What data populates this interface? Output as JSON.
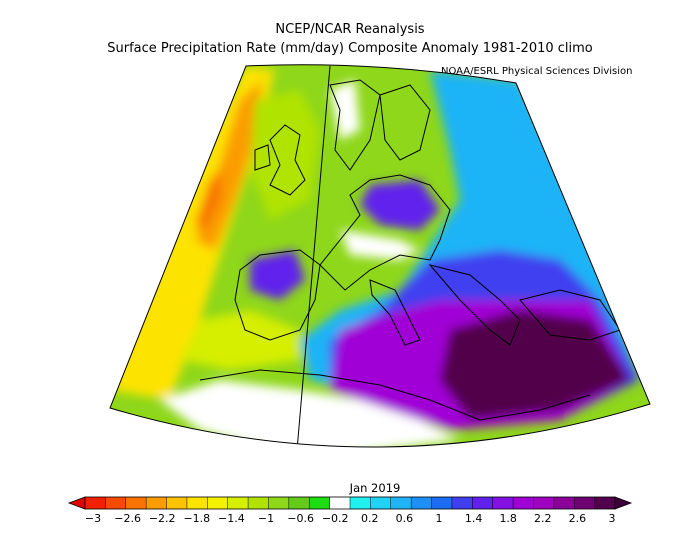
{
  "header": {
    "title": "NCEP/NCAR Reanalysis",
    "subtitle": "Surface Precipitation Rate (mm/day) Composite Anomaly 1981-2010 climo",
    "credit": "NOAA/ESRL Physical Sciences Division"
  },
  "map": {
    "period_label": "Jan 2019",
    "region": "Europe / Mediterranean",
    "projection": "conic",
    "anomaly_areas": [
      {
        "area": "Eastern Mediterranean / Greece / Turkey",
        "level": "strong wet",
        "approx_anomaly": 3
      },
      {
        "area": "Central Mediterranean / Tyrrhenian Sea",
        "level": "wet",
        "approx_anomaly": 2.2
      },
      {
        "area": "Alps / Southern Germany",
        "level": "wet",
        "approx_anomaly": 2.2
      },
      {
        "area": "Northern Spain",
        "level": "wet",
        "approx_anomaly": 1.6
      },
      {
        "area": "Northern Scandinavia",
        "level": "wet",
        "approx_anomaly": 0.8
      },
      {
        "area": "North Atlantic west of Ireland",
        "level": "dry",
        "approx_anomaly": -2.2
      },
      {
        "area": "Eastern Atlantic",
        "level": "dry",
        "approx_anomaly": -1.2
      },
      {
        "area": "British Isles / France",
        "level": "slightly dry",
        "approx_anomaly": -0.6
      }
    ]
  },
  "colorbar": {
    "labels": [
      "-3",
      "-2.6",
      "-2.2",
      "-1.8",
      "-1.4",
      "-1",
      "-0.6",
      "-0.2",
      "0.2",
      "0.6",
      "1",
      "1.4",
      "1.8",
      "2.2",
      "2.6",
      "3"
    ],
    "colors": [
      "#f02000",
      "#f54a00",
      "#f87300",
      "#fb9c00",
      "#fdc200",
      "#fde300",
      "#f5f200",
      "#d6ee00",
      "#b0e300",
      "#8ed71a",
      "#64cb1a",
      "#1ddc11",
      "#ffffff",
      "#20f0f0",
      "#20d2f5",
      "#1fb4f6",
      "#1e90f4",
      "#1c6cf4",
      "#3f3ff0",
      "#6120ec",
      "#8410e2",
      "#a000d5",
      "#a000c0",
      "#8a0098",
      "#700072",
      "#52004c"
    ],
    "under_color": "#e00000",
    "over_color": "#3c0038"
  }
}
